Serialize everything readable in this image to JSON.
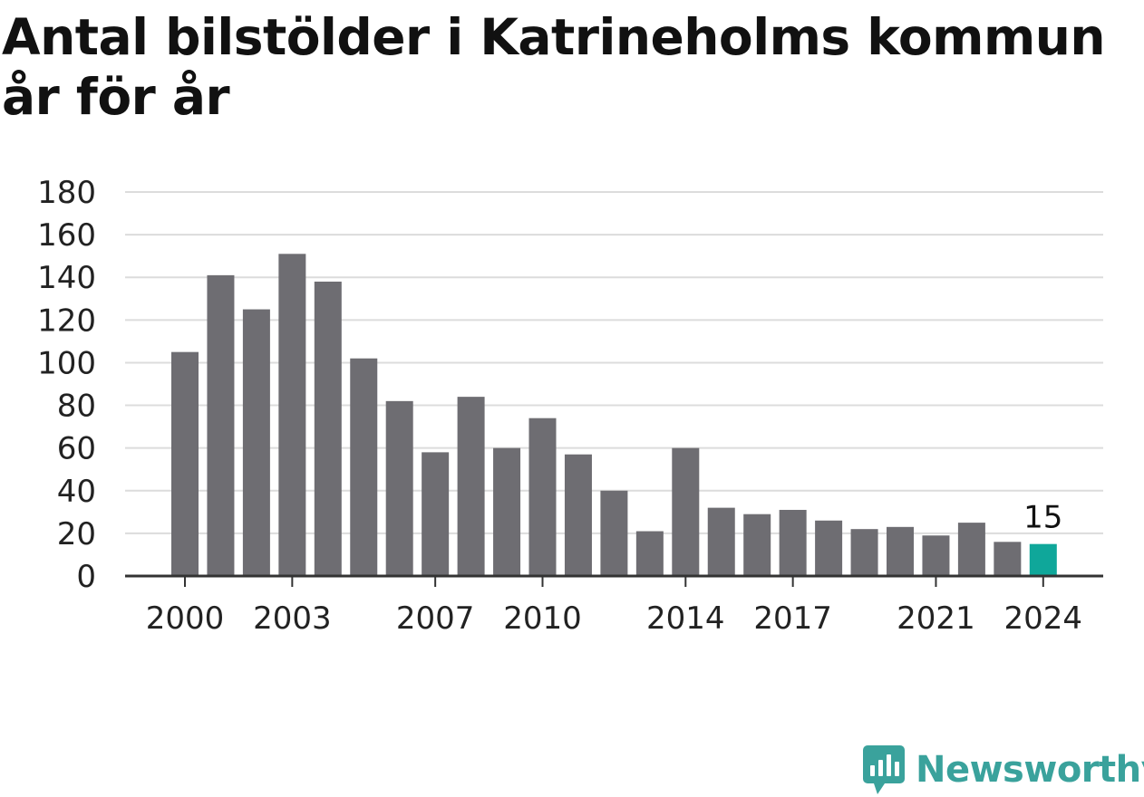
{
  "title": "Antal bilstölder i Katrineholms kommun år för år",
  "brand": "Newsworthy",
  "colors": {
    "bar": "#6e6d72",
    "highlight": "#0fa79a",
    "grid": "#dcdcdc",
    "axis": "#333333",
    "text": "#222222",
    "brand": "#3aa29c"
  },
  "chart_data": {
    "type": "bar",
    "title": "Antal bilstölder i Katrineholms kommun år för år",
    "xlabel": "",
    "ylabel": "",
    "categories": [
      "2000",
      "2001",
      "2002",
      "2003",
      "2004",
      "2005",
      "2006",
      "2007",
      "2008",
      "2009",
      "2010",
      "2011",
      "2012",
      "2013",
      "2014",
      "2015",
      "2016",
      "2017",
      "2018",
      "2019",
      "2020",
      "2021",
      "2022",
      "2023",
      "2024"
    ],
    "values": [
      105,
      141,
      125,
      151,
      138,
      102,
      82,
      58,
      84,
      60,
      74,
      57,
      40,
      21,
      60,
      32,
      29,
      31,
      26,
      22,
      23,
      19,
      25,
      16,
      15
    ],
    "x_tick_labels": [
      "2000",
      "2003",
      "2007",
      "2010",
      "2014",
      "2017",
      "2021",
      "2024"
    ],
    "y_ticks": [
      0,
      20,
      40,
      60,
      80,
      100,
      120,
      140,
      160,
      180
    ],
    "ylim": [
      0,
      180
    ],
    "grid": true,
    "highlight_category": "2024",
    "annotation": "15"
  }
}
